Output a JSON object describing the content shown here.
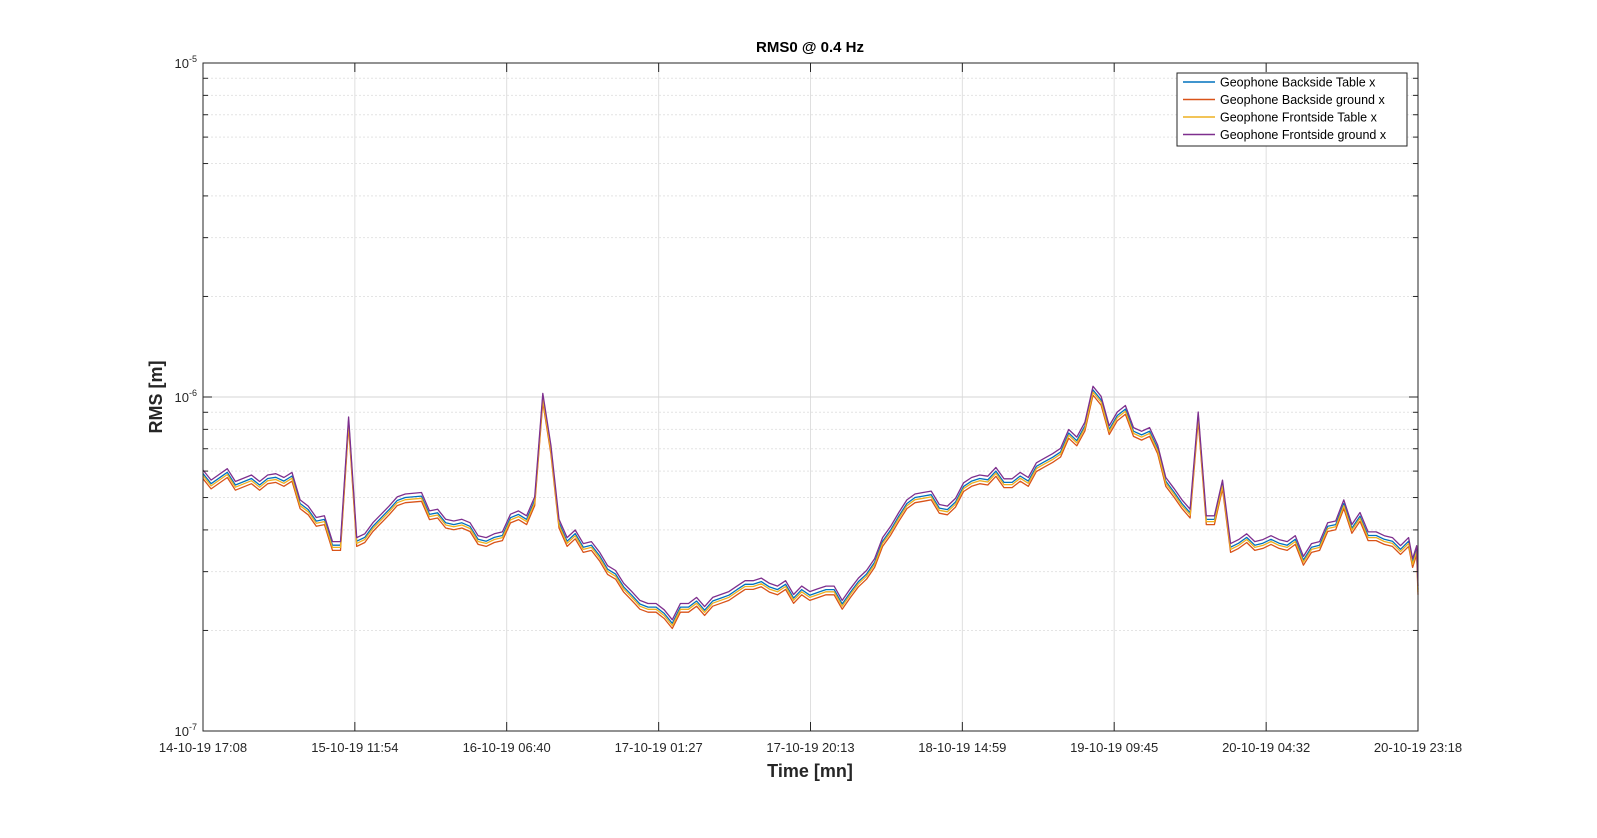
{
  "chart_data": {
    "type": "line",
    "title": "RMS0 @ 0.4 Hz",
    "xlabel": "Time [mn]",
    "ylabel": "RMS [m]",
    "yscale": "log",
    "ylim": [
      1e-07,
      1e-05
    ],
    "yticks": [
      {
        "value": 1e-07,
        "base": "10",
        "exp": "-7"
      },
      {
        "value": 1e-06,
        "base": "10",
        "exp": "-6"
      },
      {
        "value": 1e-05,
        "base": "10",
        "exp": "-5"
      }
    ],
    "xlim": [
      "14-10-19 17:08",
      "20-10-19 23:18"
    ],
    "xticks": [
      "14-10-19 17:08",
      "15-10-19 11:54",
      "16-10-19 06:40",
      "17-10-19 01:27",
      "17-10-19 20:13",
      "18-10-19 14:59",
      "19-10-19 09:45",
      "20-10-19 04:32",
      "20-10-19 23:18"
    ],
    "grid": true,
    "legend_position": "top-right",
    "series": [
      {
        "name": "Geophone Backside Table x",
        "color": "#0072BD",
        "offset": 1.0
      },
      {
        "name": "Geophone Backside ground x",
        "color": "#D95319",
        "offset": 0.965
      },
      {
        "name": "Geophone Frontside Table x",
        "color": "#EDB120",
        "offset": 0.985
      },
      {
        "name": "Geophone Frontside ground x",
        "color": "#7E2F8E",
        "offset": 1.025
      }
    ],
    "base_series": [
      [
        "14-10-19 17:08",
        5.9e-07
      ],
      [
        "14-10-19 18:08",
        5.5e-07
      ],
      [
        "14-10-19 20:08",
        5.95e-07
      ],
      [
        "14-10-19 21:08",
        5.45e-07
      ],
      [
        "14-10-19 23:08",
        5.7e-07
      ],
      [
        "15-10-19 00:08",
        5.45e-07
      ],
      [
        "15-10-19 01:08",
        5.7e-07
      ],
      [
        "15-10-19 02:08",
        5.75e-07
      ],
      [
        "15-10-19 03:08",
        5.6e-07
      ],
      [
        "15-10-19 04:08",
        5.8e-07
      ],
      [
        "15-10-19 05:08",
        4.8e-07
      ],
      [
        "15-10-19 06:08",
        4.6e-07
      ],
      [
        "15-10-19 07:08",
        4.25e-07
      ],
      [
        "15-10-19 08:08",
        4.3e-07
      ],
      [
        "15-10-19 09:08",
        3.6e-07
      ],
      [
        "15-10-19 10:08",
        3.6e-07
      ],
      [
        "15-10-19 11:08",
        8.5e-07
      ],
      [
        "15-10-19 12:08",
        3.7e-07
      ],
      [
        "15-10-19 13:08",
        3.8e-07
      ],
      [
        "15-10-19 14:08",
        4.1e-07
      ],
      [
        "15-10-19 16:08",
        4.6e-07
      ],
      [
        "15-10-19 17:08",
        4.9e-07
      ],
      [
        "15-10-19 18:08",
        5e-07
      ],
      [
        "15-10-19 20:08",
        5.05e-07
      ],
      [
        "15-10-19 21:08",
        4.45e-07
      ],
      [
        "15-10-19 22:08",
        4.5e-07
      ],
      [
        "15-10-19 23:08",
        4.2e-07
      ],
      [
        "16-10-19 00:08",
        4.15e-07
      ],
      [
        "16-10-19 01:08",
        4.2e-07
      ],
      [
        "16-10-19 02:08",
        4.1e-07
      ],
      [
        "16-10-19 03:08",
        3.75e-07
      ],
      [
        "16-10-19 04:08",
        3.7e-07
      ],
      [
        "16-10-19 05:08",
        3.8e-07
      ],
      [
        "16-10-19 06:08",
        3.85e-07
      ],
      [
        "16-10-19 07:08",
        4.35e-07
      ],
      [
        "16-10-19 08:08",
        4.45e-07
      ],
      [
        "16-10-19 09:08",
        4.3e-07
      ],
      [
        "16-10-19 10:08",
        4.9e-07
      ],
      [
        "16-10-19 11:08",
        1e-06
      ],
      [
        "16-10-19 12:08",
        7e-07
      ],
      [
        "16-10-19 13:08",
        4.2e-07
      ],
      [
        "16-10-19 14:08",
        3.7e-07
      ],
      [
        "16-10-19 15:08",
        3.9e-07
      ],
      [
        "16-10-19 16:08",
        3.55e-07
      ],
      [
        "16-10-19 17:08",
        3.6e-07
      ],
      [
        "16-10-19 18:08",
        3.35e-07
      ],
      [
        "16-10-19 19:08",
        3.05e-07
      ],
      [
        "16-10-19 20:08",
        2.95e-07
      ],
      [
        "16-10-19 21:08",
        2.7e-07
      ],
      [
        "16-10-19 22:08",
        2.55e-07
      ],
      [
        "16-10-19 23:08",
        2.4e-07
      ],
      [
        "17-10-19 00:08",
        2.35e-07
      ],
      [
        "17-10-19 01:08",
        2.35e-07
      ],
      [
        "17-10-19 02:08",
        2.25e-07
      ],
      [
        "17-10-19 03:08",
        2.1e-07
      ],
      [
        "17-10-19 04:08",
        2.35e-07
      ],
      [
        "17-10-19 05:08",
        2.35e-07
      ],
      [
        "17-10-19 06:08",
        2.45e-07
      ],
      [
        "17-10-19 07:08",
        2.3e-07
      ],
      [
        "17-10-19 08:08",
        2.45e-07
      ],
      [
        "17-10-19 09:08",
        2.5e-07
      ],
      [
        "17-10-19 10:08",
        2.55e-07
      ],
      [
        "17-10-19 11:08",
        2.65e-07
      ],
      [
        "17-10-19 12:08",
        2.75e-07
      ],
      [
        "17-10-19 13:08",
        2.75e-07
      ],
      [
        "17-10-19 14:08",
        2.8e-07
      ],
      [
        "17-10-19 15:08",
        2.7e-07
      ],
      [
        "17-10-19 16:08",
        2.65e-07
      ],
      [
        "17-10-19 17:08",
        2.75e-07
      ],
      [
        "17-10-19 18:08",
        2.5e-07
      ],
      [
        "17-10-19 19:08",
        2.65e-07
      ],
      [
        "17-10-19 20:08",
        2.55e-07
      ],
      [
        "17-10-19 21:08",
        2.6e-07
      ],
      [
        "17-10-19 22:08",
        2.65e-07
      ],
      [
        "17-10-19 23:08",
        2.65e-07
      ],
      [
        "18-10-19 00:08",
        2.4e-07
      ],
      [
        "18-10-19 01:08",
        2.6e-07
      ],
      [
        "18-10-19 02:08",
        2.8e-07
      ],
      [
        "18-10-19 03:08",
        2.95e-07
      ],
      [
        "18-10-19 04:08",
        3.2e-07
      ],
      [
        "18-10-19 05:08",
        3.7e-07
      ],
      [
        "18-10-19 06:08",
        4e-07
      ],
      [
        "18-10-19 07:08",
        4.4e-07
      ],
      [
        "18-10-19 08:08",
        4.8e-07
      ],
      [
        "18-10-19 09:08",
        5e-07
      ],
      [
        "18-10-19 10:08",
        5.05e-07
      ],
      [
        "18-10-19 11:08",
        5.1e-07
      ],
      [
        "18-10-19 12:08",
        4.65e-07
      ],
      [
        "18-10-19 13:08",
        4.6e-07
      ],
      [
        "18-10-19 14:08",
        4.85e-07
      ],
      [
        "18-10-19 15:08",
        5.4e-07
      ],
      [
        "18-10-19 16:08",
        5.6e-07
      ],
      [
        "18-10-19 17:08",
        5.7e-07
      ],
      [
        "18-10-19 18:08",
        5.65e-07
      ],
      [
        "18-10-19 19:08",
        6e-07
      ],
      [
        "18-10-19 20:08",
        5.55e-07
      ],
      [
        "18-10-19 21:08",
        5.55e-07
      ],
      [
        "18-10-19 22:08",
        5.8e-07
      ],
      [
        "18-10-19 23:08",
        5.6e-07
      ],
      [
        "19-10-19 00:08",
        6.2e-07
      ],
      [
        "19-10-19 01:08",
        6.4e-07
      ],
      [
        "19-10-19 02:08",
        6.6e-07
      ],
      [
        "19-10-19 03:08",
        6.85e-07
      ],
      [
        "19-10-19 04:08",
        7.8e-07
      ],
      [
        "19-10-19 05:08",
        7.4e-07
      ],
      [
        "19-10-19 06:08",
        8.2e-07
      ],
      [
        "19-10-19 07:08",
        1.05e-06
      ],
      [
        "19-10-19 08:08",
        9.8e-07
      ],
      [
        "19-10-19 09:08",
        8e-07
      ],
      [
        "19-10-19 10:08",
        8.8e-07
      ],
      [
        "19-10-19 11:08",
        9.2e-07
      ],
      [
        "19-10-19 12:08",
        7.9e-07
      ],
      [
        "19-10-19 13:08",
        7.7e-07
      ],
      [
        "19-10-19 14:08",
        7.9e-07
      ],
      [
        "19-10-19 15:08",
        7e-07
      ],
      [
        "19-10-19 16:08",
        5.6e-07
      ],
      [
        "19-10-19 17:08",
        5.2e-07
      ],
      [
        "19-10-19 18:08",
        4.8e-07
      ],
      [
        "19-10-19 19:08",
        4.5e-07
      ],
      [
        "19-10-19 20:08",
        8.8e-07
      ],
      [
        "19-10-19 21:08",
        4.3e-07
      ],
      [
        "19-10-19 22:08",
        4.3e-07
      ],
      [
        "19-10-19 23:08",
        5.5e-07
      ],
      [
        "20-10-19 00:08",
        3.55e-07
      ],
      [
        "20-10-19 01:08",
        3.65e-07
      ],
      [
        "20-10-19 02:08",
        3.8e-07
      ],
      [
        "20-10-19 03:08",
        3.6e-07
      ],
      [
        "20-10-19 04:08",
        3.65e-07
      ],
      [
        "20-10-19 05:08",
        3.75e-07
      ],
      [
        "20-10-19 06:08",
        3.65e-07
      ],
      [
        "20-10-19 07:08",
        3.6e-07
      ],
      [
        "20-10-19 08:08",
        3.75e-07
      ],
      [
        "20-10-19 09:08",
        3.25e-07
      ],
      [
        "20-10-19 10:08",
        3.55e-07
      ],
      [
        "20-10-19 11:08",
        3.6e-07
      ],
      [
        "20-10-19 12:08",
        4.1e-07
      ],
      [
        "20-10-19 13:08",
        4.15e-07
      ],
      [
        "20-10-19 14:08",
        4.8e-07
      ],
      [
        "20-10-19 15:08",
        4.05e-07
      ],
      [
        "20-10-19 16:08",
        4.4e-07
      ],
      [
        "20-10-19 17:08",
        3.85e-07
      ],
      [
        "20-10-19 18:08",
        3.85e-07
      ],
      [
        "20-10-19 19:08",
        3.75e-07
      ],
      [
        "20-10-19 20:08",
        3.7e-07
      ],
      [
        "20-10-19 21:08",
        3.5e-07
      ],
      [
        "20-10-19 22:08",
        3.7e-07
      ],
      [
        "20-10-19 22:38",
        3.2e-07
      ],
      [
        "20-10-19 23:08",
        3.5e-07
      ],
      [
        "20-10-19 23:18",
        2.65e-07
      ]
    ]
  }
}
